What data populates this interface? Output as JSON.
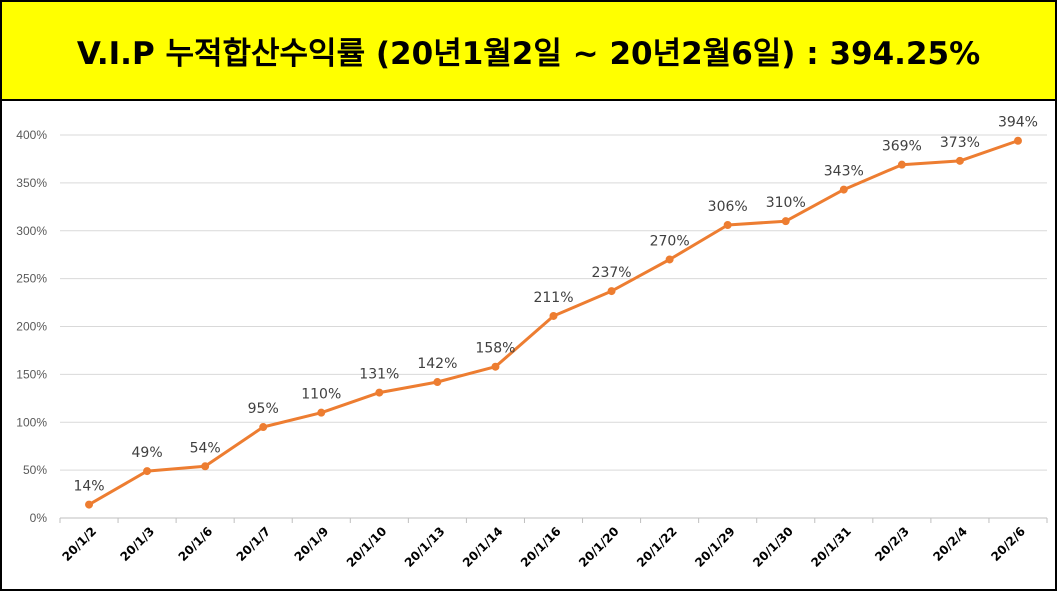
{
  "title": "V.I.P 누적합산수익률 (20년1월2일 ~ 20년2월6일) : 394.25%",
  "colors": {
    "title_bg": "#ffff00",
    "line": "#ed7d31",
    "grid": "#d9d9d9"
  },
  "chart_data": {
    "type": "line",
    "title": "V.I.P 누적합산수익률 (20년1월2일 ~ 20년2월6일) : 394.25%",
    "xlabel": "",
    "ylabel": "",
    "ylim": [
      0,
      400
    ],
    "yticks": [
      0,
      50,
      100,
      150,
      200,
      250,
      300,
      350,
      400
    ],
    "ytick_labels": [
      "0%",
      "50%",
      "100%",
      "150%",
      "200%",
      "250%",
      "300%",
      "350%",
      "400%"
    ],
    "grid": true,
    "legend": "none",
    "categories": [
      "20/1/2",
      "20/1/3",
      "20/1/6",
      "20/1/7",
      "20/1/9",
      "20/1/10",
      "20/1/13",
      "20/1/14",
      "20/1/16",
      "20/1/20",
      "20/1/22",
      "20/1/29",
      "20/1/30",
      "20/1/31",
      "20/2/3",
      "20/2/4",
      "20/2/6"
    ],
    "series": [
      {
        "name": "누적합산수익률",
        "values": [
          14,
          49,
          54,
          95,
          110,
          131,
          142,
          158,
          211,
          237,
          270,
          306,
          310,
          343,
          369,
          373,
          394
        ],
        "labels": [
          "14%",
          "49%",
          "54%",
          "95%",
          "110%",
          "131%",
          "142%",
          "158%",
          "211%",
          "237%",
          "270%",
          "306%",
          "310%",
          "343%",
          "369%",
          "373%",
          "394%"
        ]
      }
    ]
  }
}
